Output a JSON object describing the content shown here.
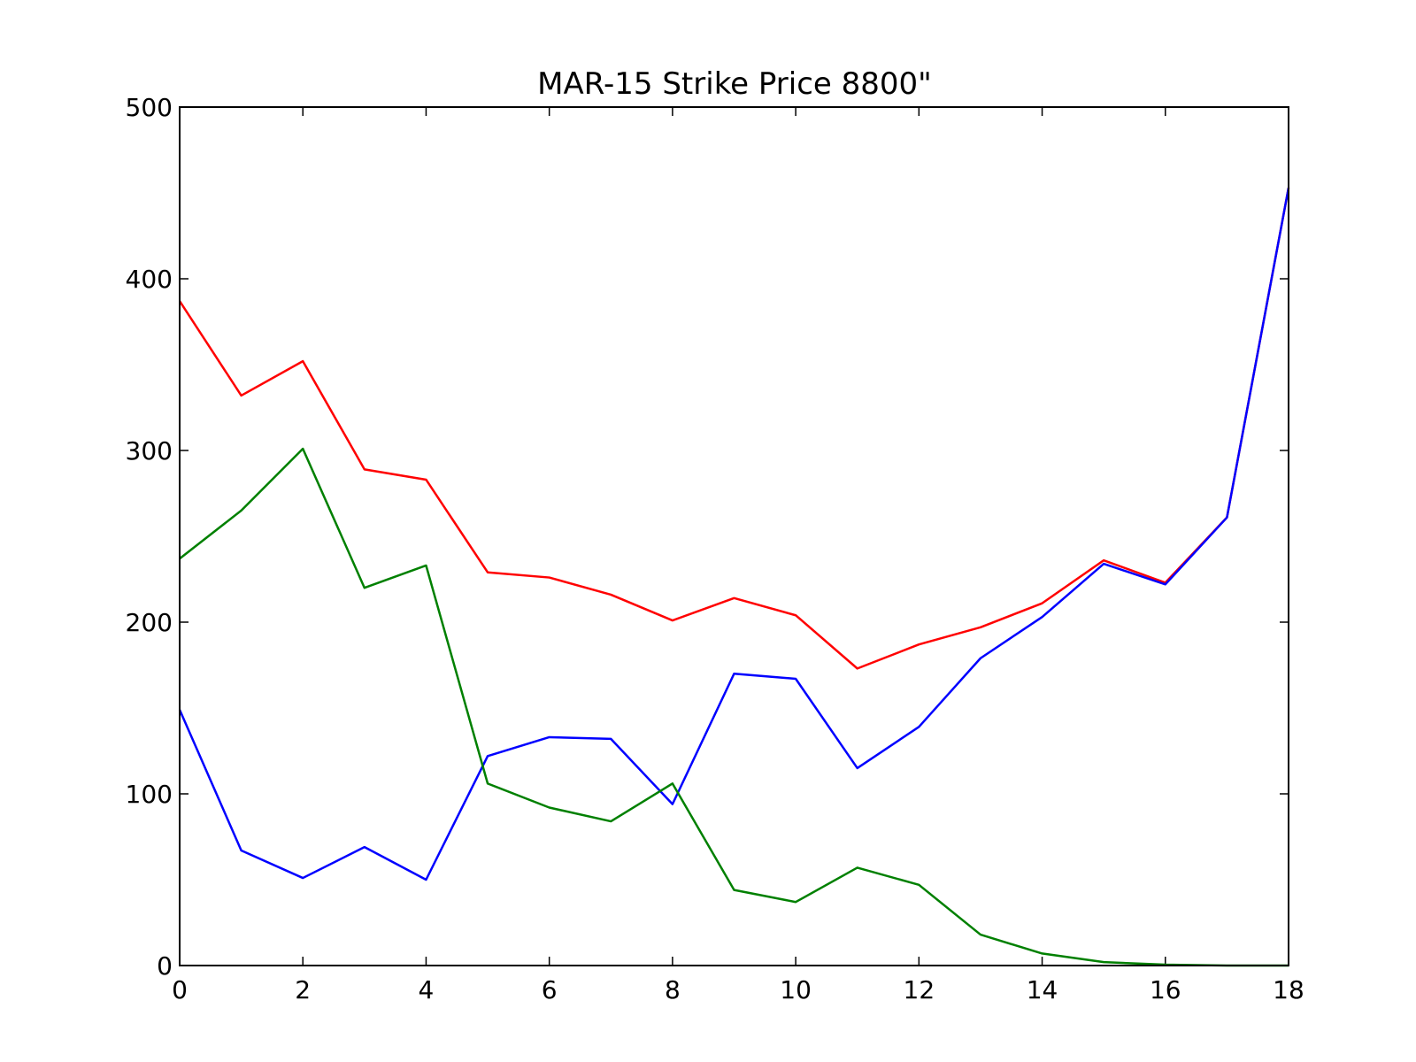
{
  "chart_data": {
    "type": "line",
    "title": "MAR-15 Strike Price 8800\"",
    "x": [
      0,
      1,
      2,
      3,
      4,
      5,
      6,
      7,
      8,
      9,
      10,
      11,
      12,
      13,
      14,
      15,
      16,
      17,
      18
    ],
    "series": [
      {
        "color": "#ff0000",
        "values": [
          387,
          332,
          352,
          289,
          283,
          229,
          226,
          216,
          201,
          214,
          204,
          173,
          187,
          197,
          211,
          236,
          223,
          261,
          453
        ]
      },
      {
        "color": "#0000ff",
        "values": [
          149,
          67,
          51,
          69,
          50,
          122,
          133,
          132,
          94,
          170,
          167,
          115,
          139,
          179,
          203,
          234,
          222,
          261,
          453
        ]
      },
      {
        "color": "#008000",
        "values": [
          237,
          265,
          301,
          220,
          233,
          106,
          92,
          84,
          106,
          44,
          37,
          57,
          47,
          18,
          7,
          2,
          0.5,
          0,
          0
        ]
      }
    ],
    "xlim": [
      0,
      18
    ],
    "xticks": [
      0,
      2,
      4,
      6,
      8,
      10,
      12,
      14,
      16,
      18
    ],
    "ylim": [
      0,
      500
    ],
    "yticks": [
      0,
      100,
      200,
      300,
      400,
      500
    ]
  }
}
